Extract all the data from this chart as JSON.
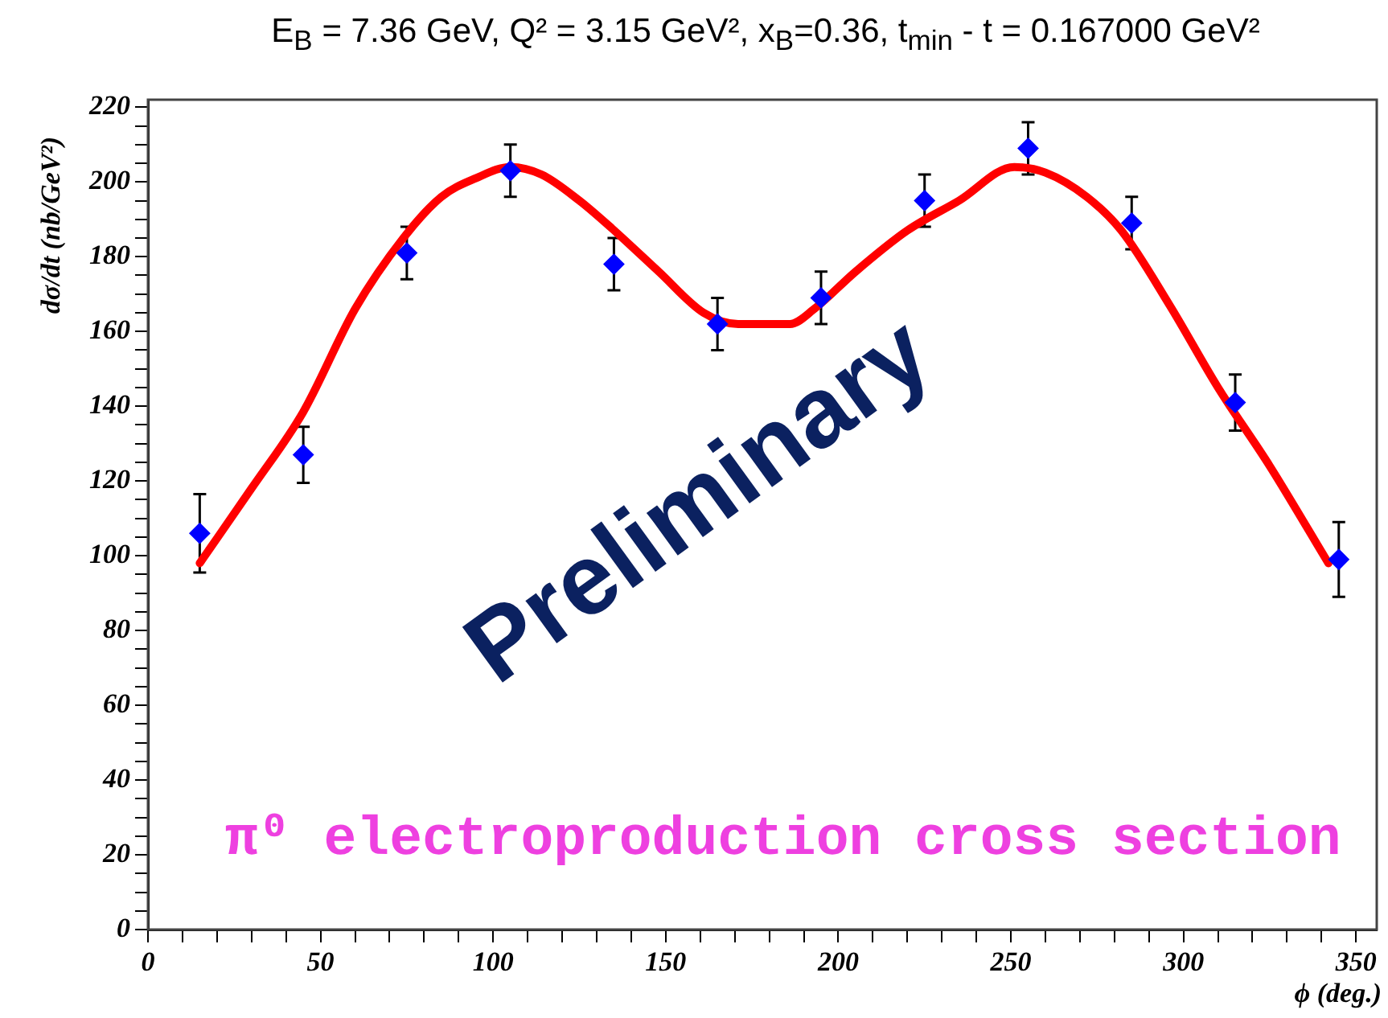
{
  "chart_data": {
    "type": "scatter",
    "title": "E$_{B}$ = 7.36 GeV, Q² = 3.15 GeV², x$_{B}$=0.36, t$_{min}$ - t = 0.167000 GeV²",
    "xlabel": "ϕ (deg.)",
    "ylabel": "dσ/dt (nb/GeV²)",
    "annotations": [
      "Preliminary",
      "π⁰ electroproduction cross section"
    ],
    "xlim": [
      0,
      356
    ],
    "xticks": [
      0,
      {
        "value": 10,
        "label": null
      },
      {
        "value": 20,
        "label": null
      },
      {
        "value": 30,
        "label": null
      },
      {
        "value": 40,
        "label": null
      },
      50,
      {
        "value": 60,
        "label": null
      },
      {
        "value": 70,
        "label": null
      },
      {
        "value": 80,
        "label": null
      },
      {
        "value": 90,
        "label": null
      },
      100,
      {
        "value": 110,
        "label": null
      },
      {
        "value": 120,
        "label": null
      },
      {
        "value": 130,
        "label": null
      },
      {
        "value": 140,
        "label": null
      },
      150,
      {
        "value": 160,
        "label": null
      },
      {
        "value": 170,
        "label": null
      },
      {
        "value": 180,
        "label": null
      },
      {
        "value": 190,
        "label": null
      },
      200,
      {
        "value": 210,
        "label": null
      },
      {
        "value": 220,
        "label": null
      },
      {
        "value": 230,
        "label": null
      },
      {
        "value": 240,
        "label": null
      },
      250,
      {
        "value": 260,
        "label": null
      },
      {
        "value": 270,
        "label": null
      },
      {
        "value": 280,
        "label": null
      },
      {
        "value": 290,
        "label": null
      },
      300,
      {
        "value": 310,
        "label": null
      },
      {
        "value": 320,
        "label": null
      },
      {
        "value": 330,
        "label": null
      },
      {
        "value": 340,
        "label": null
      },
      350
    ],
    "ylim": [
      0,
      222
    ],
    "yticks": [
      0,
      {
        "value": 5,
        "label": null
      },
      {
        "value": 10,
        "label": null
      },
      {
        "value": 15,
        "label": null
      },
      20,
      {
        "value": 25,
        "label": null
      },
      {
        "value": 30,
        "label": null
      },
      {
        "value": 35,
        "label": null
      },
      40,
      {
        "value": 45,
        "label": null
      },
      {
        "value": 50,
        "label": null
      },
      {
        "value": 55,
        "label": null
      },
      60,
      {
        "value": 65,
        "label": null
      },
      {
        "value": 70,
        "label": null
      },
      {
        "value": 75,
        "label": null
      },
      80,
      {
        "value": 85,
        "label": null
      },
      {
        "value": 90,
        "label": null
      },
      {
        "value": 95,
        "label": null
      },
      100,
      {
        "value": 105,
        "label": null
      },
      {
        "value": 110,
        "label": null
      },
      {
        "value": 115,
        "label": null
      },
      120,
      {
        "value": 125,
        "label": null
      },
      {
        "value": 130,
        "label": null
      },
      {
        "value": 135,
        "label": null
      },
      140,
      {
        "value": 145,
        "label": null
      },
      {
        "value": 150,
        "label": null
      },
      {
        "value": 155,
        "label": null
      },
      160,
      {
        "value": 165,
        "label": null
      },
      {
        "value": 170,
        "label": null
      },
      {
        "value": 175,
        "label": null
      },
      180,
      {
        "value": 185,
        "label": null
      },
      {
        "value": 190,
        "label": null
      },
      {
        "value": 195,
        "label": null
      },
      200,
      {
        "value": 205,
        "label": null
      },
      {
        "value": 210,
        "label": null
      },
      {
        "value": 215,
        "label": null
      },
      220
    ],
    "grid": false,
    "legend": false,
    "marker": "diamond",
    "series": [
      {
        "type": "line",
        "color": "#ff0000",
        "marker": "none",
        "line_style": "solid",
        "x": [
          15,
          30,
          45,
          60,
          74,
          85,
          95,
          105,
          114,
          125,
          134.5,
          148,
          161,
          171,
          186,
          193,
          205,
          220,
          235,
          251,
          260,
          272,
          282,
          296,
          310,
          325,
          342
        ],
        "values": [
          98,
          118,
          138.5,
          166,
          185,
          196,
          201,
          204,
          202,
          195,
          187.5,
          176,
          165,
          162,
          162,
          166,
          176,
          187,
          195,
          204,
          202.5,
          196,
          187,
          167,
          145,
          124,
          98
        ]
      },
      {
        "color": "#0000ff",
        "x": [
          15,
          45,
          75,
          105,
          135,
          165,
          195,
          225,
          255,
          285,
          315,
          345
        ],
        "values": [
          106,
          127,
          181,
          203,
          178,
          162,
          169,
          195,
          209,
          189,
          141,
          99
        ],
        "errors": [
          10.5,
          7.5,
          7,
          7,
          7,
          7,
          7,
          7,
          7,
          7,
          7.5,
          10
        ]
      }
    ]
  }
}
